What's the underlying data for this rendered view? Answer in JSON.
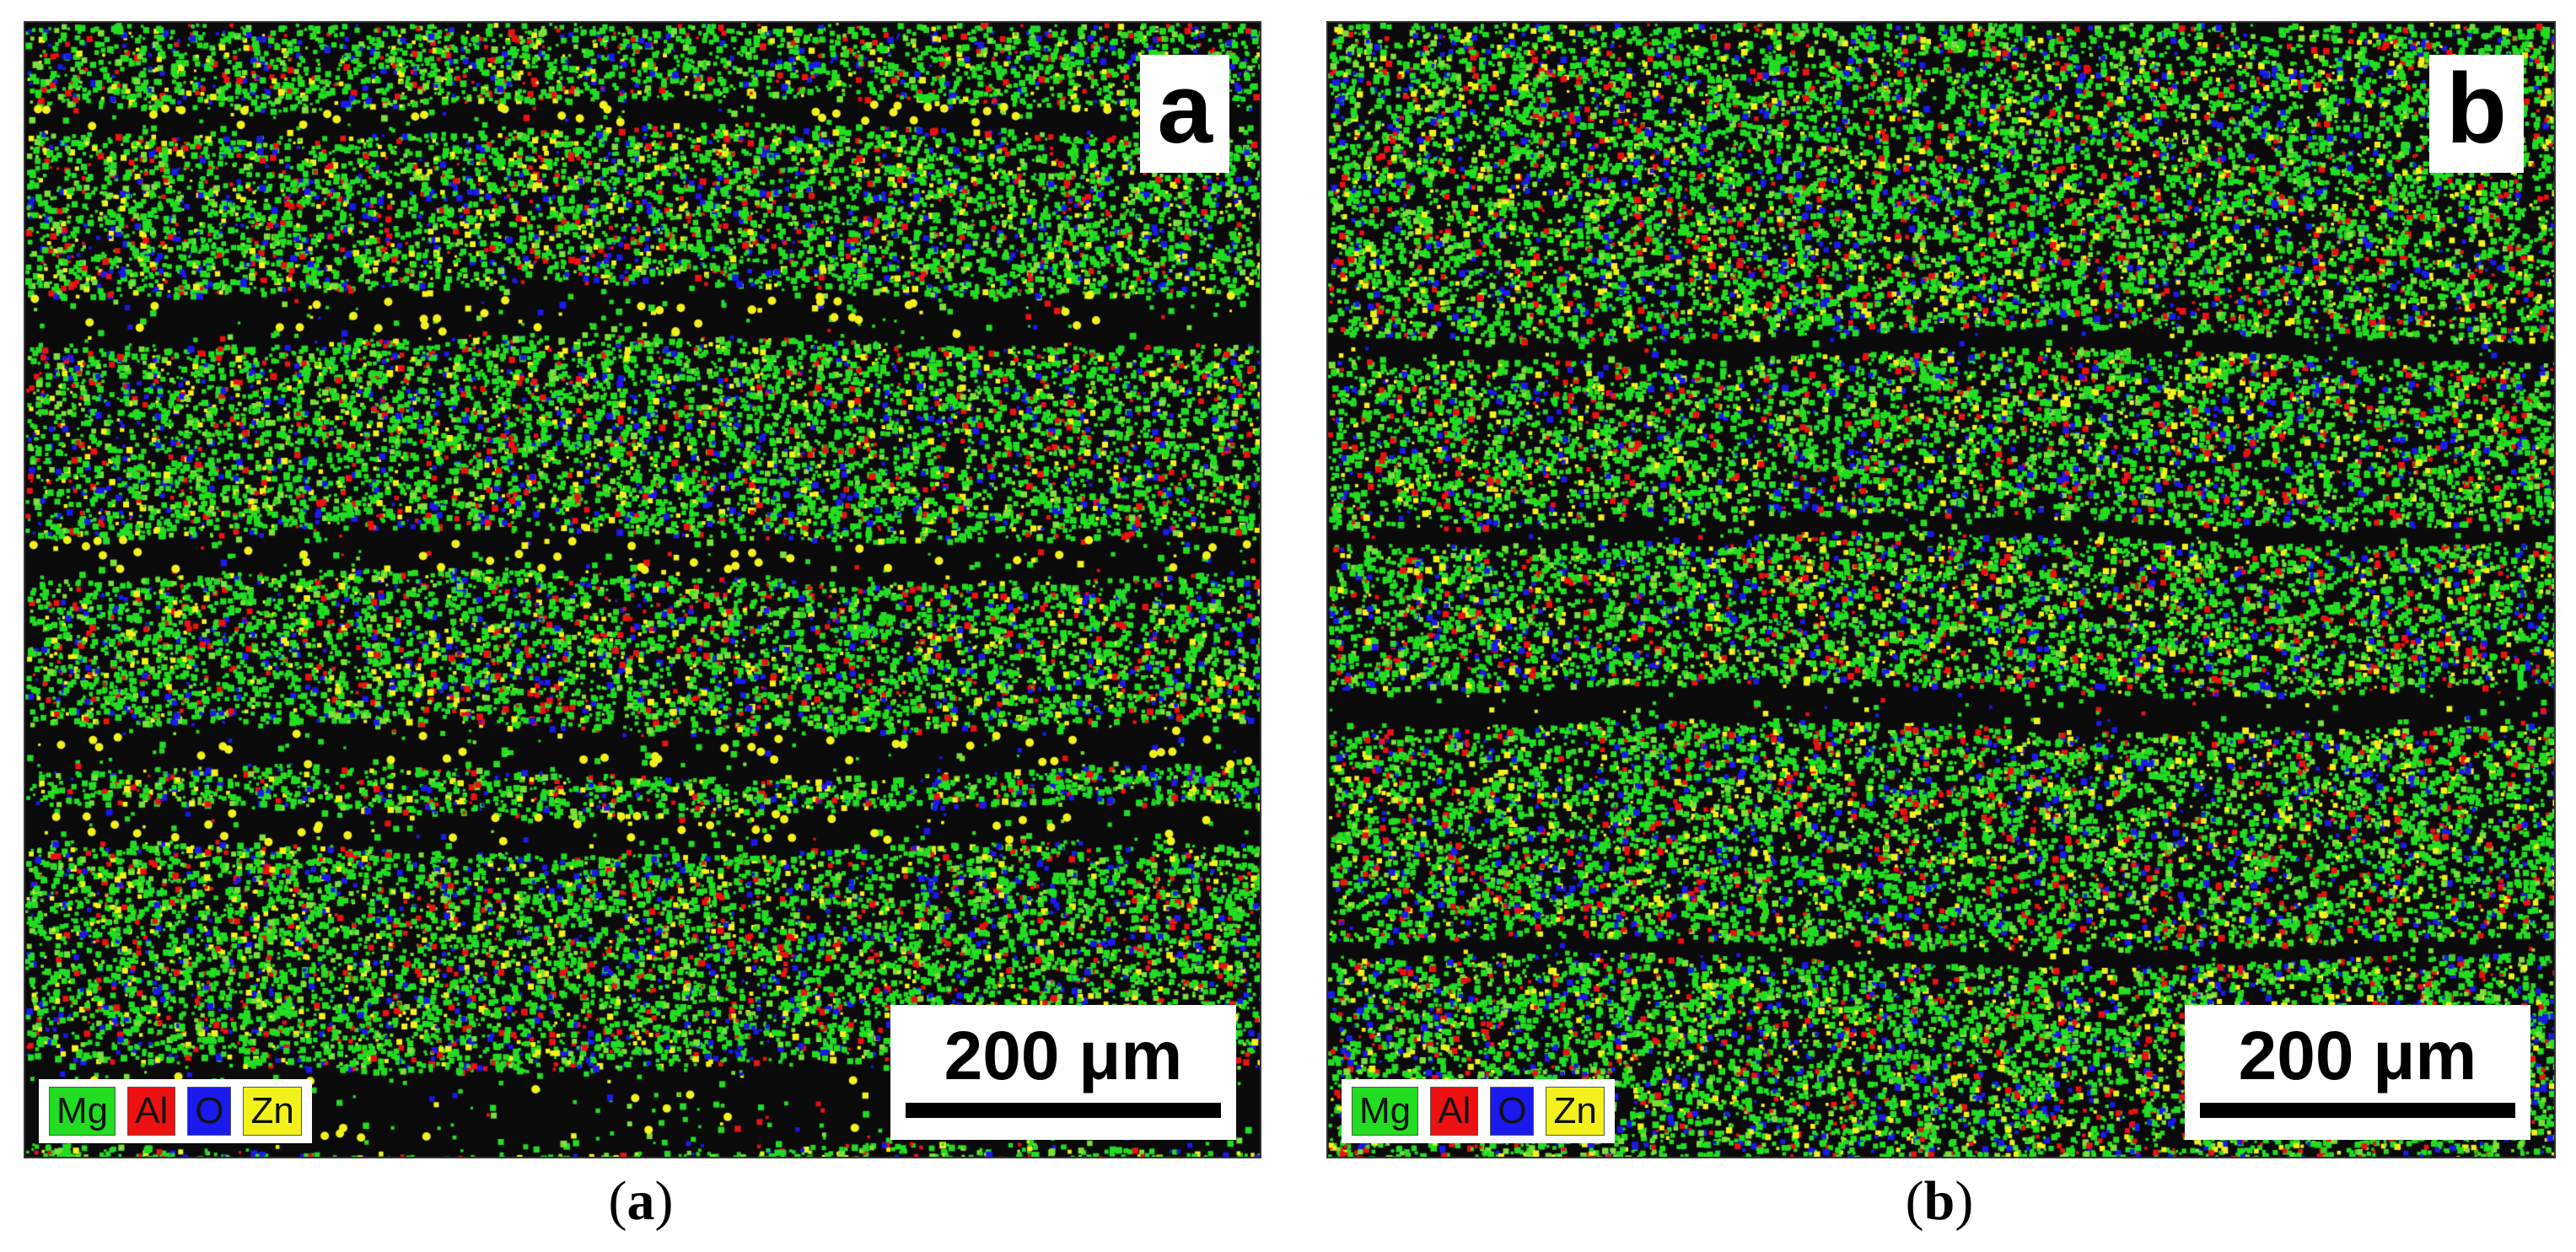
{
  "panels": [
    {
      "letter": "a",
      "scale_bar": "200 μm",
      "legend": [
        {
          "label": "Mg",
          "color": "#22dd22"
        },
        {
          "label": "Al",
          "color": "#ee1111"
        },
        {
          "label": "O",
          "color": "#1a1aee"
        },
        {
          "label": "Zn",
          "color": "#f2f21a"
        }
      ],
      "caption": {
        "open": "(",
        "letter": "a",
        "close": ")"
      }
    },
    {
      "letter": "b",
      "scale_bar": "200 μm",
      "legend": [
        {
          "label": "Mg",
          "color": "#22dd22"
        },
        {
          "label": "Al",
          "color": "#ee1111"
        },
        {
          "label": "O",
          "color": "#1a1aee"
        },
        {
          "label": "Zn",
          "color": "#f2f21a"
        }
      ],
      "caption": {
        "open": "(",
        "letter": "b",
        "close": ")"
      }
    }
  ]
}
